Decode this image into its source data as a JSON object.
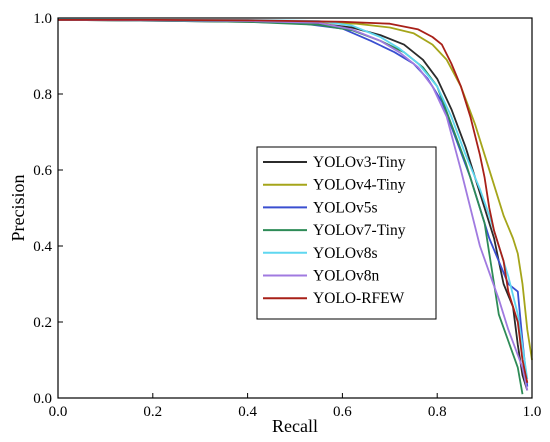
{
  "chart_data": {
    "type": "line",
    "title": "",
    "xlabel": "Recall",
    "ylabel": "Precision",
    "xlim": [
      0.0,
      1.0
    ],
    "ylim": [
      0.0,
      1.0
    ],
    "xticks": [
      "0.0",
      "0.2",
      "0.4",
      "0.6",
      "0.8",
      "1.0"
    ],
    "yticks": [
      "0.0",
      "0.2",
      "0.4",
      "0.6",
      "0.8",
      "1.0"
    ],
    "grid": false,
    "legend_position": "center-right",
    "series": [
      {
        "name": "YOLOv3-Tiny",
        "color": "#2b2b2b",
        "points": [
          [
            0.0,
            0.995
          ],
          [
            0.2,
            0.993
          ],
          [
            0.4,
            0.99
          ],
          [
            0.55,
            0.985
          ],
          [
            0.62,
            0.975
          ],
          [
            0.68,
            0.955
          ],
          [
            0.73,
            0.93
          ],
          [
            0.77,
            0.89
          ],
          [
            0.8,
            0.84
          ],
          [
            0.83,
            0.76
          ],
          [
            0.86,
            0.66
          ],
          [
            0.88,
            0.58
          ],
          [
            0.9,
            0.5
          ],
          [
            0.92,
            0.42
          ],
          [
            0.93,
            0.36
          ],
          [
            0.94,
            0.3
          ],
          [
            0.96,
            0.24
          ],
          [
            0.97,
            0.14
          ],
          [
            0.98,
            0.06
          ],
          [
            0.99,
            0.02
          ]
        ]
      },
      {
        "name": "YOLOv4-Tiny",
        "color": "#a5a51a",
        "points": [
          [
            0.0,
            0.995
          ],
          [
            0.2,
            0.994
          ],
          [
            0.4,
            0.992
          ],
          [
            0.55,
            0.988
          ],
          [
            0.63,
            0.985
          ],
          [
            0.7,
            0.975
          ],
          [
            0.75,
            0.96
          ],
          [
            0.79,
            0.93
          ],
          [
            0.82,
            0.89
          ],
          [
            0.85,
            0.82
          ],
          [
            0.88,
            0.72
          ],
          [
            0.9,
            0.64
          ],
          [
            0.92,
            0.56
          ],
          [
            0.94,
            0.48
          ],
          [
            0.96,
            0.42
          ],
          [
            0.97,
            0.38
          ],
          [
            0.98,
            0.3
          ],
          [
            0.99,
            0.18
          ],
          [
            1.0,
            0.1
          ]
        ]
      },
      {
        "name": "YOLOv5s",
        "color": "#3a4fd0",
        "points": [
          [
            0.0,
            0.995
          ],
          [
            0.2,
            0.994
          ],
          [
            0.4,
            0.993
          ],
          [
            0.5,
            0.988
          ],
          [
            0.6,
            0.972
          ],
          [
            0.66,
            0.94
          ],
          [
            0.71,
            0.91
          ],
          [
            0.75,
            0.88
          ],
          [
            0.78,
            0.84
          ],
          [
            0.81,
            0.78
          ],
          [
            0.84,
            0.68
          ],
          [
            0.87,
            0.58
          ],
          [
            0.89,
            0.5
          ],
          [
            0.91,
            0.42
          ],
          [
            0.93,
            0.36
          ],
          [
            0.95,
            0.3
          ],
          [
            0.97,
            0.28
          ],
          [
            0.98,
            0.15
          ],
          [
            0.99,
            0.03
          ]
        ]
      },
      {
        "name": "YOLOv7-Tiny",
        "color": "#2e8b57",
        "points": [
          [
            0.0,
            0.995
          ],
          [
            0.2,
            0.993
          ],
          [
            0.4,
            0.99
          ],
          [
            0.55,
            0.982
          ],
          [
            0.62,
            0.968
          ],
          [
            0.68,
            0.94
          ],
          [
            0.73,
            0.91
          ],
          [
            0.77,
            0.87
          ],
          [
            0.8,
            0.82
          ],
          [
            0.83,
            0.72
          ],
          [
            0.86,
            0.62
          ],
          [
            0.88,
            0.54
          ],
          [
            0.9,
            0.46
          ],
          [
            0.91,
            0.38
          ],
          [
            0.92,
            0.3
          ],
          [
            0.93,
            0.22
          ],
          [
            0.95,
            0.15
          ],
          [
            0.97,
            0.08
          ],
          [
            0.98,
            0.01
          ]
        ]
      },
      {
        "name": "YOLOv8s",
        "color": "#5fd7f0",
        "points": [
          [
            0.0,
            0.996
          ],
          [
            0.2,
            0.995
          ],
          [
            0.4,
            0.995
          ],
          [
            0.55,
            0.992
          ],
          [
            0.62,
            0.98
          ],
          [
            0.68,
            0.95
          ],
          [
            0.72,
            0.92
          ],
          [
            0.76,
            0.88
          ],
          [
            0.8,
            0.82
          ],
          [
            0.83,
            0.74
          ],
          [
            0.86,
            0.64
          ],
          [
            0.89,
            0.55
          ],
          [
            0.91,
            0.48
          ],
          [
            0.93,
            0.4
          ],
          [
            0.95,
            0.32
          ],
          [
            0.97,
            0.22
          ],
          [
            0.99,
            0.05
          ]
        ]
      },
      {
        "name": "YOLOv8n",
        "color": "#a07ae0",
        "points": [
          [
            0.0,
            0.995
          ],
          [
            0.2,
            0.994
          ],
          [
            0.4,
            0.992
          ],
          [
            0.55,
            0.987
          ],
          [
            0.62,
            0.97
          ],
          [
            0.68,
            0.94
          ],
          [
            0.72,
            0.91
          ],
          [
            0.76,
            0.87
          ],
          [
            0.79,
            0.82
          ],
          [
            0.82,
            0.74
          ],
          [
            0.85,
            0.6
          ],
          [
            0.87,
            0.5
          ],
          [
            0.89,
            0.4
          ],
          [
            0.91,
            0.33
          ],
          [
            0.93,
            0.26
          ],
          [
            0.95,
            0.18
          ],
          [
            0.98,
            0.08
          ],
          [
            0.99,
            0.02
          ]
        ]
      },
      {
        "name": "YOLO-RFEW",
        "color": "#a82018",
        "points": [
          [
            0.0,
            0.995
          ],
          [
            0.2,
            0.995
          ],
          [
            0.4,
            0.994
          ],
          [
            0.6,
            0.99
          ],
          [
            0.7,
            0.985
          ],
          [
            0.76,
            0.97
          ],
          [
            0.79,
            0.95
          ],
          [
            0.81,
            0.93
          ],
          [
            0.83,
            0.88
          ],
          [
            0.85,
            0.82
          ],
          [
            0.87,
            0.74
          ],
          [
            0.89,
            0.64
          ],
          [
            0.9,
            0.58
          ],
          [
            0.91,
            0.5
          ],
          [
            0.92,
            0.44
          ],
          [
            0.94,
            0.36
          ],
          [
            0.95,
            0.28
          ],
          [
            0.97,
            0.2
          ],
          [
            0.98,
            0.1
          ],
          [
            0.99,
            0.04
          ]
        ]
      }
    ]
  }
}
